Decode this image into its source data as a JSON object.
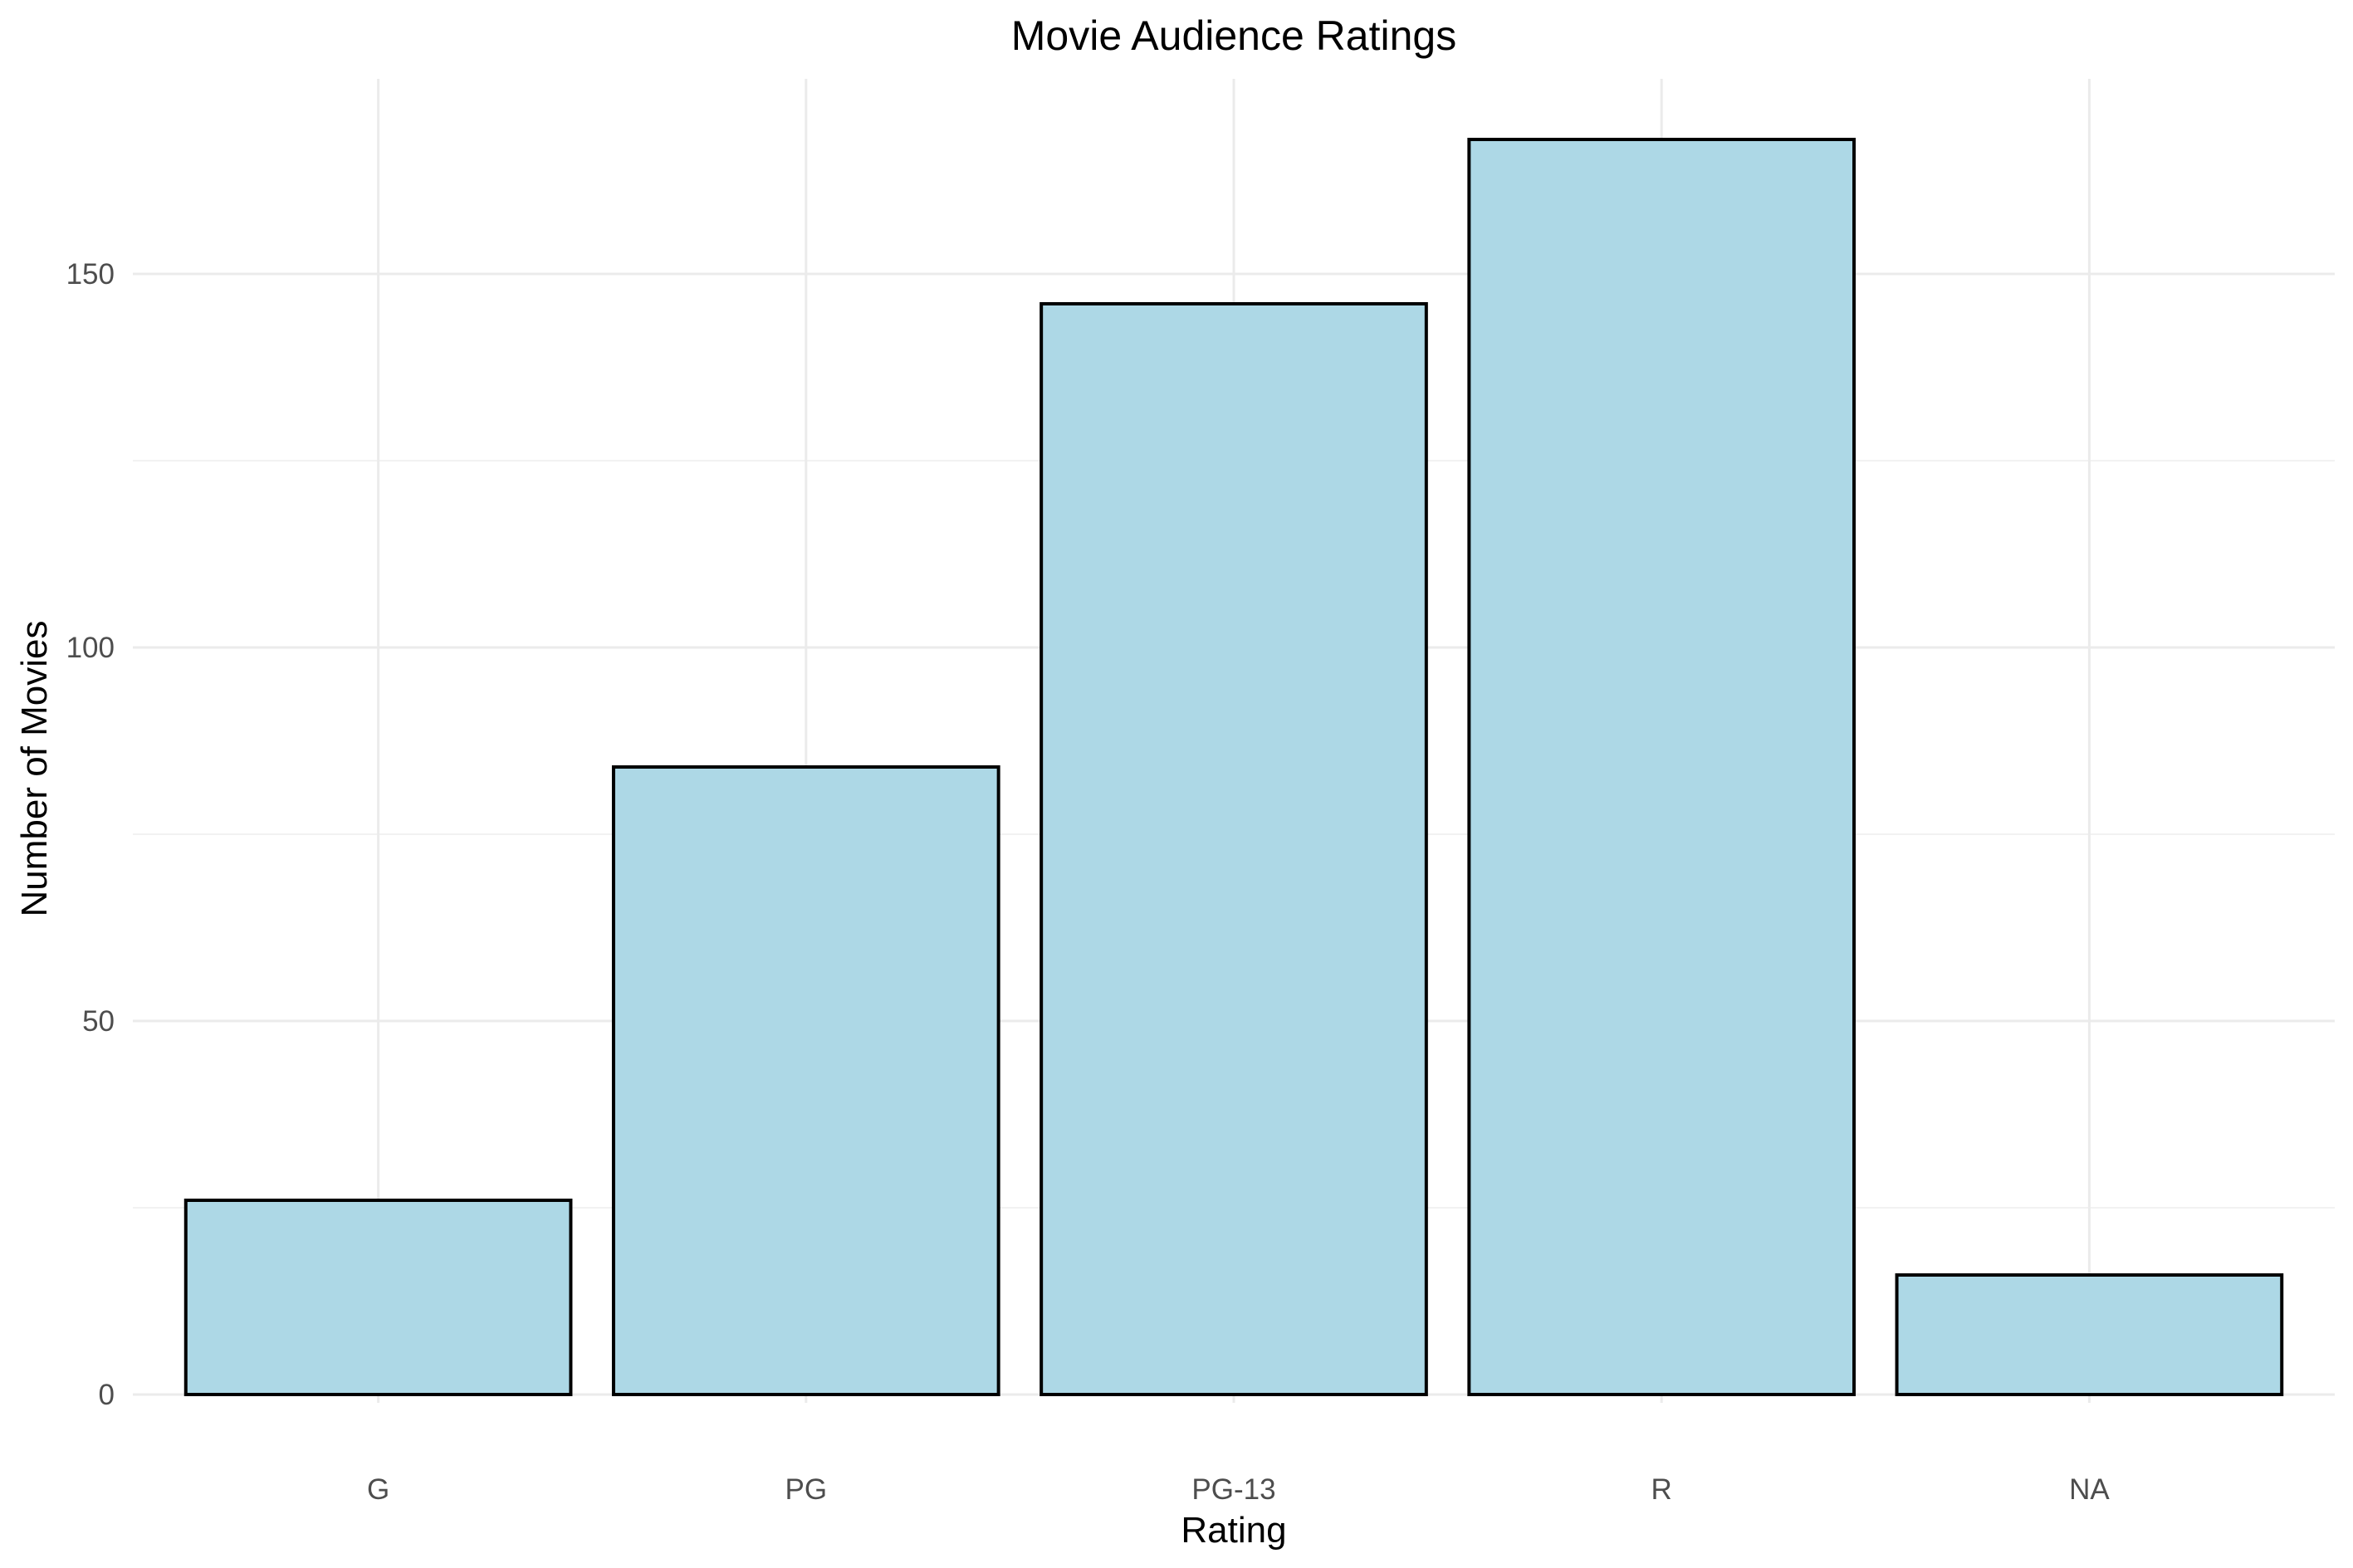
{
  "chart_data": {
    "type": "bar",
    "title": "Movie Audience Ratings",
    "xlabel": "Rating",
    "ylabel": "Number of Movies",
    "categories": [
      "G",
      "PG",
      "PG-13",
      "R",
      "NA"
    ],
    "values": [
      26,
      84,
      146,
      168,
      16
    ],
    "ylim": [
      0,
      175
    ],
    "yticks": [
      0,
      50,
      100,
      150
    ],
    "grid": true,
    "colors": {
      "bar_fill": "#ADD8E6",
      "bar_stroke": "#000000",
      "grid_major": "#EBEBEB",
      "grid_minor": "#F2F2F2"
    }
  }
}
